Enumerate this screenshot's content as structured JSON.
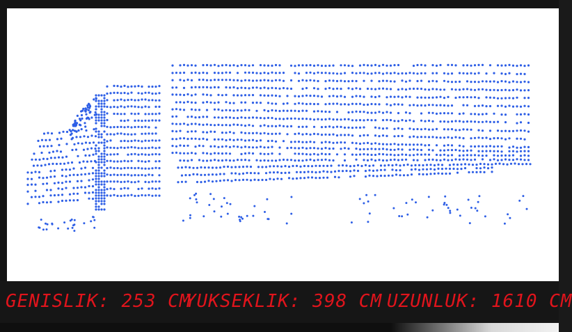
{
  "scan": {
    "object": "truck",
    "point_color": "#2e5fe6",
    "background_color": "#ffffff"
  },
  "readout": {
    "color": "#e0141c",
    "width_text": "GENISLIK: 253 CM",
    "height_text": "YUKSEKLIK: 398 CM",
    "length_text": "UZUNLUK: 1610 CM"
  }
}
